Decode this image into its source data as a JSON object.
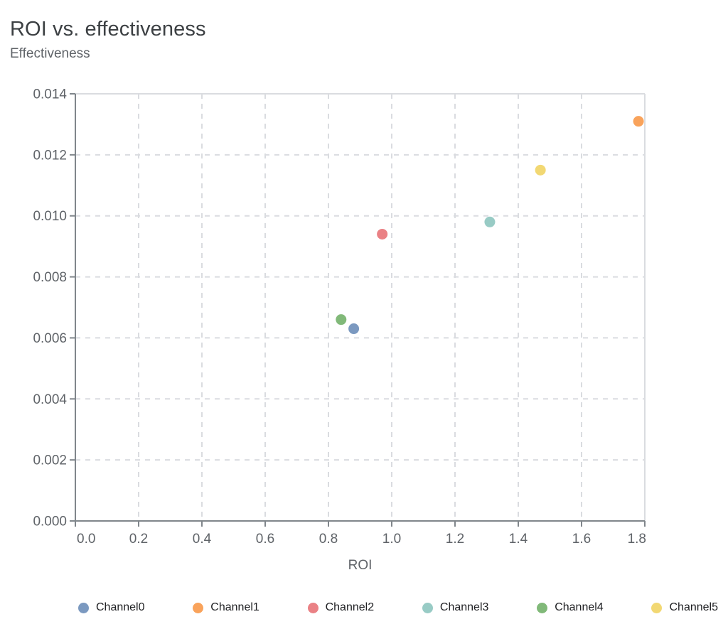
{
  "chart_data": {
    "type": "scatter",
    "title": "ROI vs. effectiveness",
    "xlabel": "ROI",
    "ylabel": "Effectiveness",
    "xlim": [
      0.0,
      1.8
    ],
    "ylim": [
      0.0,
      0.014
    ],
    "x_ticks": [
      0.0,
      0.2,
      0.4,
      0.6,
      0.8,
      1.0,
      1.2,
      1.4,
      1.6,
      1.8
    ],
    "x_tick_labels": [
      "0.0",
      "0.2",
      "0.4",
      "0.6",
      "0.8",
      "1.0",
      "1.2",
      "1.4",
      "1.6",
      "1.8"
    ],
    "y_ticks": [
      0.0,
      0.002,
      0.004,
      0.006,
      0.008,
      0.01,
      0.012,
      0.014
    ],
    "y_tick_labels": [
      "0.000",
      "0.002",
      "0.004",
      "0.006",
      "0.008",
      "0.010",
      "0.012",
      "0.014"
    ],
    "grid": "dashed",
    "legend_position": "bottom",
    "series": [
      {
        "name": "Channel0",
        "color": "#7b99c0",
        "points": [
          {
            "x": 0.88,
            "y": 0.0063
          }
        ]
      },
      {
        "name": "Channel1",
        "color": "#f9a35b",
        "points": [
          {
            "x": 1.78,
            "y": 0.0131
          }
        ]
      },
      {
        "name": "Channel2",
        "color": "#ea8185",
        "points": [
          {
            "x": 0.97,
            "y": 0.0094
          }
        ]
      },
      {
        "name": "Channel3",
        "color": "#98cbc5",
        "points": [
          {
            "x": 1.31,
            "y": 0.0098
          }
        ]
      },
      {
        "name": "Channel4",
        "color": "#81b979",
        "points": [
          {
            "x": 0.84,
            "y": 0.0066
          }
        ]
      },
      {
        "name": "Channel5",
        "color": "#f2d873",
        "points": [
          {
            "x": 1.47,
            "y": 0.0115
          }
        ]
      }
    ]
  },
  "theme": {
    "title_color": "#3c4043",
    "axis_label_color": "#5f6368",
    "tick_label_color": "#5f6368",
    "axis_line_color": "#80868b",
    "grid_color": "#dadce0",
    "legend_text_color": "#202124",
    "background": "#ffffff"
  }
}
